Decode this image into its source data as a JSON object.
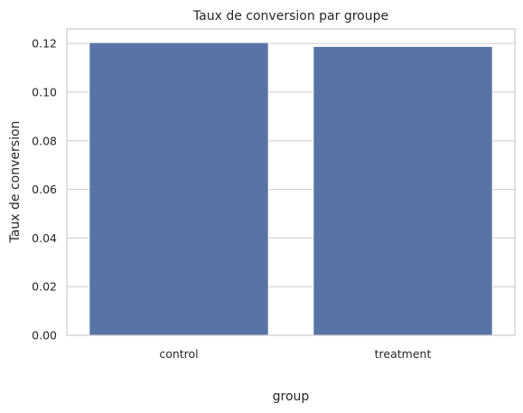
{
  "chart_data": {
    "type": "bar",
    "title": "Taux de conversion par groupe",
    "xlabel": "group",
    "ylabel": "Taux de conversion",
    "categories": [
      "control",
      "treatment"
    ],
    "values": [
      0.1204,
      0.1188
    ],
    "ylim": [
      0,
      0.126
    ],
    "yticks": [
      0.0,
      0.02,
      0.04,
      0.06,
      0.08,
      0.1,
      0.12
    ],
    "ytick_labels": [
      "0.00",
      "0.02",
      "0.04",
      "0.06",
      "0.08",
      "0.10",
      "0.12"
    ],
    "grid": true,
    "bar_color": "#5874a6",
    "bar_edge_color": "#ffffff",
    "grid_color": "#cccccc",
    "text_color": "#262626"
  }
}
